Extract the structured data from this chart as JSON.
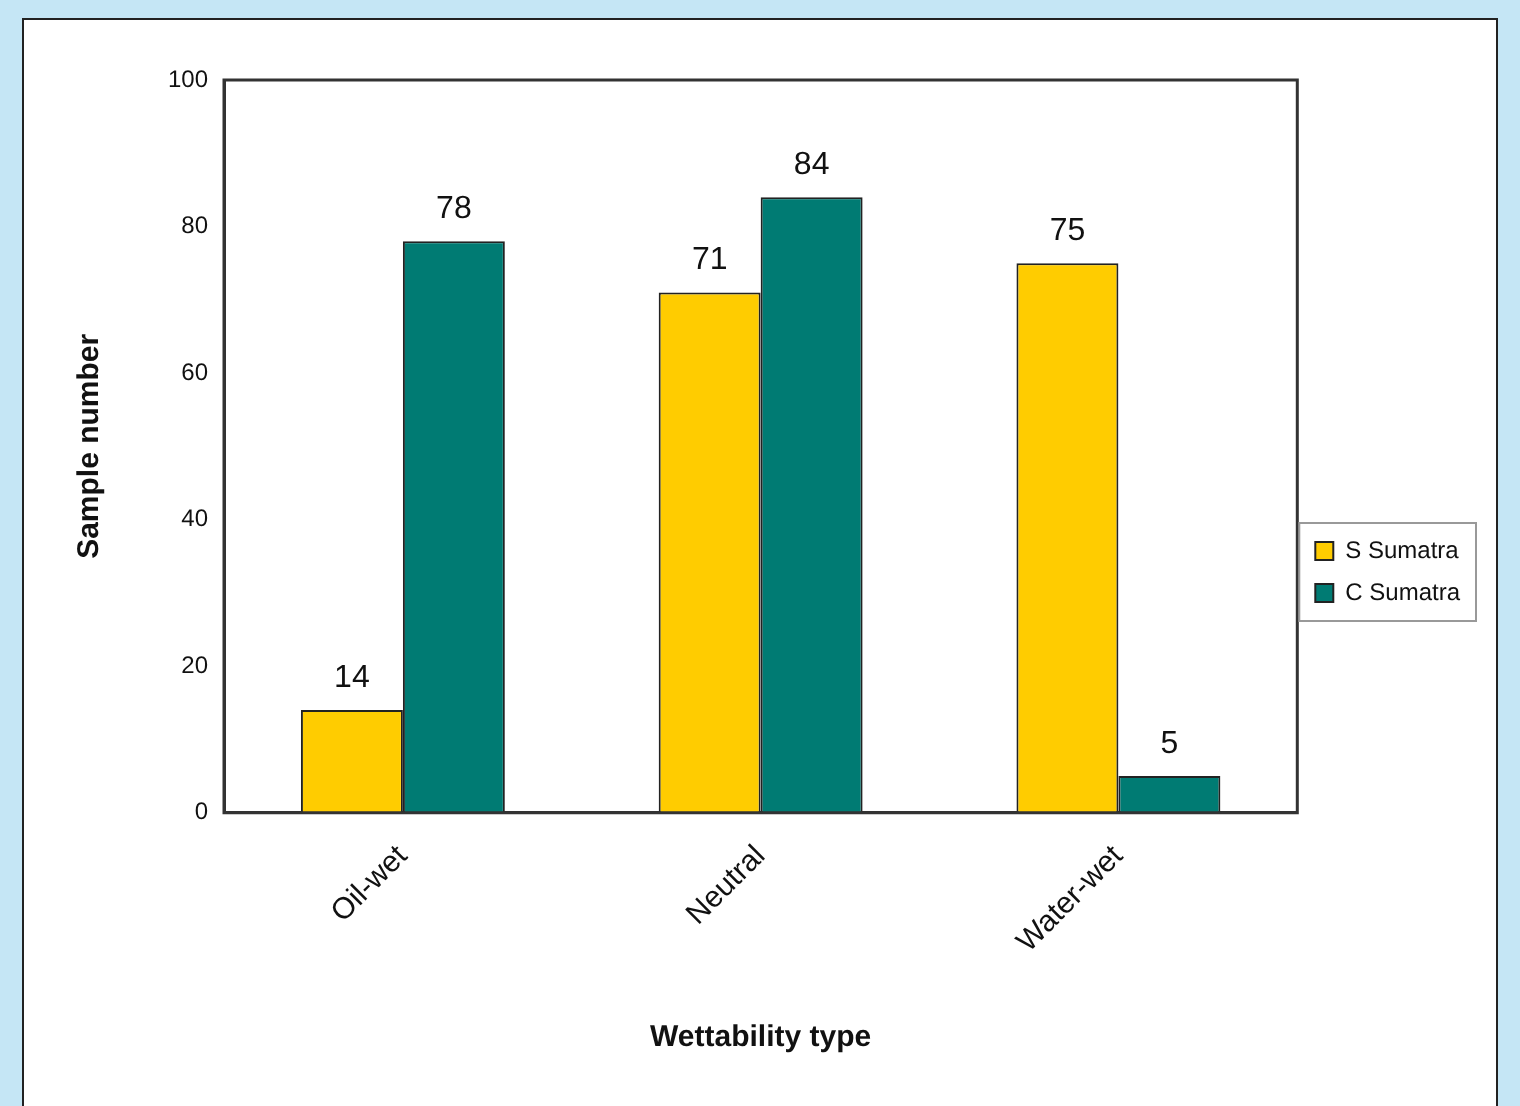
{
  "chart_data": {
    "type": "bar",
    "xlabel": "Wettability type",
    "ylabel": "Sample number",
    "categories": [
      "Oil-wet",
      "Neutral",
      "Water-wet"
    ],
    "series": [
      {
        "name": "S Sumatra",
        "color": "#ffcc00",
        "values": [
          14,
          71,
          75
        ]
      },
      {
        "name": "C Sumatra",
        "color": "#007b73",
        "values": [
          78,
          84,
          5
        ]
      }
    ],
    "ylim": [
      0,
      100
    ],
    "yticks": [
      0,
      20,
      40,
      60,
      80,
      100
    ],
    "grid": false,
    "legend": "right",
    "data_labels": true
  }
}
